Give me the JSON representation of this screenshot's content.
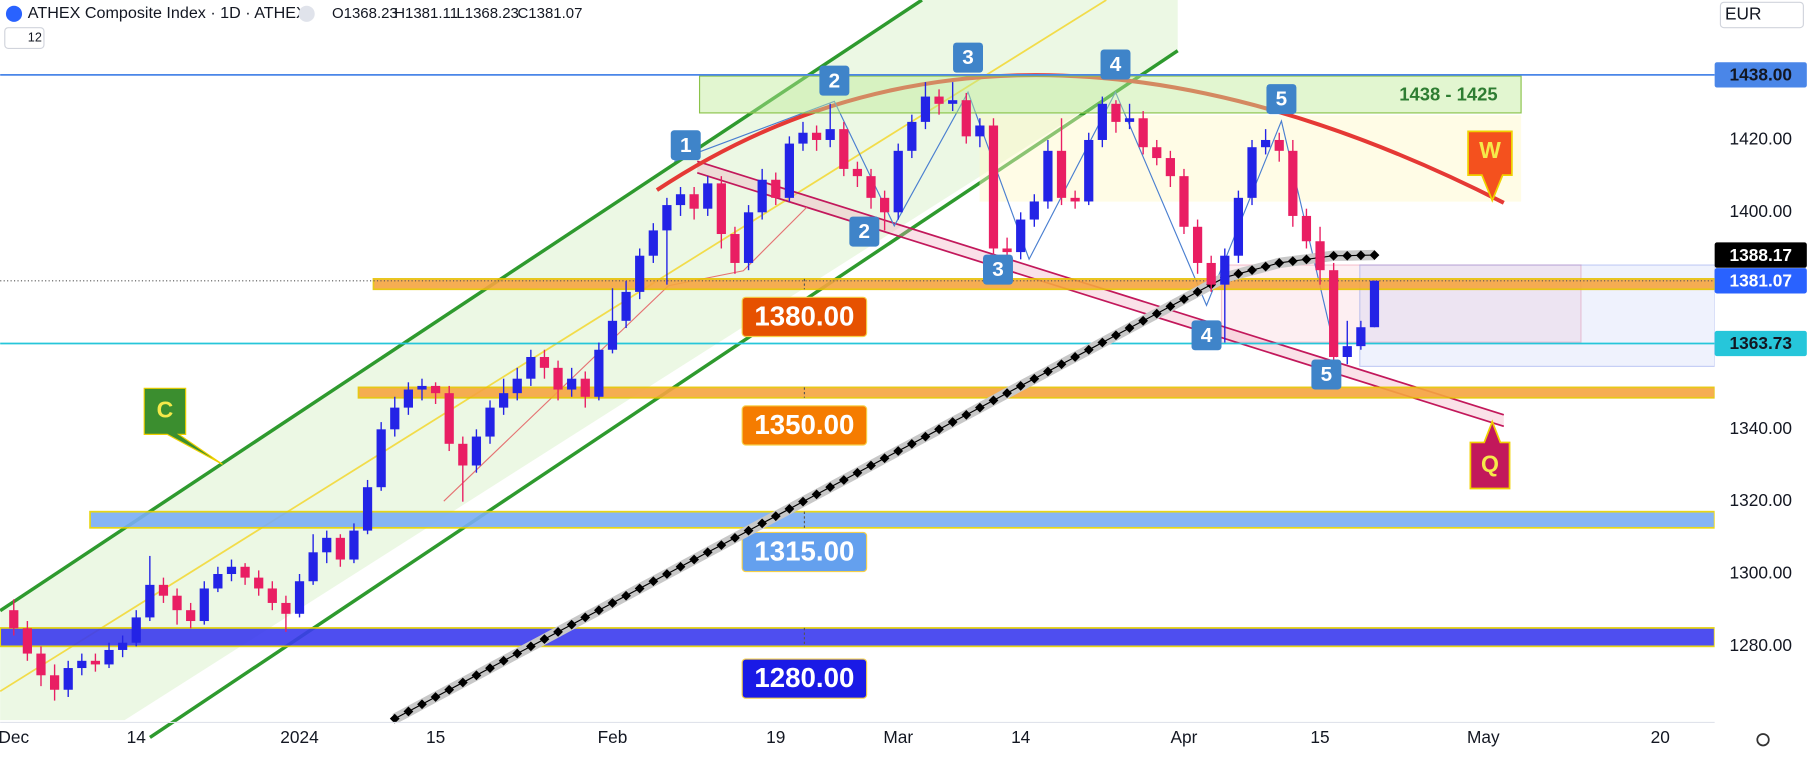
{
  "chart_data": {
    "type": "candlestick",
    "title": "ATHEX Composite Index · 1D · ATHEX",
    "ohlc_header": [
      "O1368.23",
      "H1381.11",
      "L1368.23",
      "C1381.07"
    ],
    "indicator_count": "12",
    "currency": "EUR",
    "up_color": "#2323e6",
    "down_color": "#e91e63",
    "grid": false,
    "xlim": [
      "2023-11-30",
      "2024-05-24"
    ],
    "xticks": [
      {
        "value": "2023-12-01",
        "label": "Dec"
      },
      {
        "value": "2023-12-14",
        "label": "14"
      },
      {
        "value": "2024-01-01",
        "label": "2024"
      },
      {
        "value": "2024-01-15",
        "label": "15"
      },
      {
        "value": "2024-02-01",
        "label": "Feb"
      },
      {
        "value": "2024-02-19",
        "label": "19"
      },
      {
        "value": "2024-03-01",
        "label": "Mar"
      },
      {
        "value": "2024-03-14",
        "label": "14"
      },
      {
        "value": "2024-04-01",
        "label": "Apr"
      },
      {
        "value": "2024-04-15",
        "label": "15"
      },
      {
        "value": "2024-05-01",
        "label": "May"
      },
      {
        "value": "2024-05-20",
        "label": "20"
      }
    ],
    "ylim": [
      1259.6,
      1458.7
    ],
    "yticks": [
      {
        "value": 1280,
        "label": "1280.00"
      },
      {
        "value": 1300,
        "label": "1300.00"
      },
      {
        "value": 1320,
        "label": "1320.00"
      },
      {
        "value": 1340,
        "label": "1340.00"
      },
      {
        "value": 1400,
        "label": "1400.00"
      },
      {
        "value": 1420,
        "label": "1420.00"
      }
    ],
    "x": [
      "2023-12-01",
      "2023-12-04",
      "2023-12-05",
      "2023-12-06",
      "2023-12-07",
      "2023-12-08",
      "2023-12-11",
      "2023-12-12",
      "2023-12-13",
      "2023-12-14",
      "2023-12-15",
      "2023-12-18",
      "2023-12-19",
      "2023-12-20",
      "2023-12-21",
      "2023-12-22",
      "2023-12-25",
      "2023-12-26",
      "2023-12-27",
      "2023-12-28",
      "2023-12-29",
      "2024-01-01",
      "2024-01-02",
      "2024-01-03",
      "2024-01-04",
      "2024-01-05",
      "2024-01-08",
      "2024-01-09",
      "2024-01-10",
      "2024-01-11",
      "2024-01-12",
      "2024-01-15",
      "2024-01-16",
      "2024-01-17",
      "2024-01-18",
      "2024-01-19",
      "2024-01-22",
      "2024-01-23",
      "2024-01-24",
      "2024-01-25",
      "2024-01-26",
      "2024-01-29",
      "2024-01-30",
      "2024-01-31",
      "2024-02-01",
      "2024-02-02",
      "2024-02-05",
      "2024-02-06",
      "2024-02-07",
      "2024-02-08",
      "2024-02-09",
      "2024-02-12",
      "2024-02-13",
      "2024-02-14",
      "2024-02-15",
      "2024-02-16",
      "2024-02-19",
      "2024-02-20",
      "2024-02-21",
      "2024-02-22",
      "2024-02-23",
      "2024-02-26",
      "2024-02-27",
      "2024-02-28",
      "2024-02-29",
      "2024-03-01",
      "2024-03-04",
      "2024-03-05",
      "2024-03-06",
      "2024-03-07",
      "2024-03-08",
      "2024-03-11",
      "2024-03-12",
      "2024-03-13",
      "2024-03-14",
      "2024-03-15",
      "2024-03-18",
      "2024-03-19",
      "2024-03-20",
      "2024-03-21",
      "2024-03-22",
      "2024-03-25",
      "2024-03-26",
      "2024-03-27",
      "2024-03-28",
      "2024-03-29",
      "2024-04-01",
      "2024-04-02",
      "2024-04-03",
      "2024-04-04",
      "2024-04-05",
      "2024-04-08",
      "2024-04-09",
      "2024-04-10",
      "2024-04-11",
      "2024-04-12",
      "2024-04-15",
      "2024-04-16",
      "2024-04-17",
      "2024-04-18",
      "2024-04-19"
    ],
    "ohlc": [
      [
        1290,
        1293,
        1283,
        1285
      ],
      [
        1285,
        1287,
        1276,
        1278
      ],
      [
        1278,
        1280,
        1269,
        1272
      ],
      [
        1272,
        1275,
        1265,
        1268
      ],
      [
        1268,
        1276,
        1266,
        1274
      ],
      [
        1274,
        1278,
        1272,
        1276
      ],
      [
        1276,
        1278,
        1273,
        1275
      ],
      [
        1275,
        1281,
        1274,
        1279
      ],
      [
        1279,
        1283,
        1277,
        1281
      ],
      [
        1281,
        1290,
        1280,
        1288
      ],
      [
        1288,
        1305,
        1287,
        1297
      ],
      [
        1297,
        1299,
        1292,
        1294
      ],
      [
        1294,
        1296,
        1286,
        1290
      ],
      [
        1290,
        1292,
        1285,
        1287
      ],
      [
        1287,
        1298,
        1286,
        1296
      ],
      [
        1296,
        1302,
        1295,
        1300
      ],
      [
        1300,
        1304,
        1298,
        1302
      ],
      [
        1302,
        1303,
        1297,
        1299
      ],
      [
        1299,
        1301,
        1294,
        1296
      ],
      [
        1296,
        1298,
        1290,
        1292
      ],
      [
        1292,
        1294,
        1284,
        1289
      ],
      [
        1289,
        1300,
        1288,
        1298
      ],
      [
        1298,
        1311,
        1297,
        1306
      ],
      [
        1306,
        1312,
        1303,
        1310
      ],
      [
        1310,
        1311,
        1302,
        1304
      ],
      [
        1304,
        1314,
        1303,
        1312
      ],
      [
        1312,
        1326,
        1311,
        1324
      ],
      [
        1324,
        1342,
        1323,
        1340
      ],
      [
        1340,
        1349,
        1338,
        1346
      ],
      [
        1346,
        1353,
        1344,
        1351
      ],
      [
        1351,
        1354,
        1348,
        1352
      ],
      [
        1352,
        1353,
        1347,
        1350
      ],
      [
        1350,
        1352,
        1334,
        1336
      ],
      [
        1336,
        1338,
        1320,
        1330
      ],
      [
        1330,
        1340,
        1328,
        1338
      ],
      [
        1338,
        1348,
        1336,
        1346
      ],
      [
        1346,
        1354,
        1344,
        1350
      ],
      [
        1350,
        1357,
        1348,
        1354
      ],
      [
        1354,
        1362,
        1352,
        1360
      ],
      [
        1360,
        1362,
        1354,
        1357
      ],
      [
        1357,
        1359,
        1348,
        1351
      ],
      [
        1351,
        1357,
        1349,
        1354
      ],
      [
        1354,
        1356,
        1346,
        1349
      ],
      [
        1349,
        1364,
        1348,
        1362
      ],
      [
        1362,
        1379,
        1361,
        1370
      ],
      [
        1370,
        1381,
        1368,
        1378
      ],
      [
        1378,
        1390,
        1376,
        1388
      ],
      [
        1388,
        1397,
        1386,
        1395
      ],
      [
        1395,
        1404,
        1380,
        1402
      ],
      [
        1402,
        1407,
        1399,
        1405
      ],
      [
        1405,
        1407,
        1398,
        1401
      ],
      [
        1401,
        1410,
        1399,
        1408
      ],
      [
        1408,
        1410,
        1390,
        1394
      ],
      [
        1394,
        1396,
        1383,
        1386
      ],
      [
        1386,
        1402,
        1384,
        1400
      ],
      [
        1400,
        1412,
        1398,
        1409
      ],
      [
        1409,
        1411,
        1402,
        1404
      ],
      [
        1404,
        1421,
        1403,
        1419
      ],
      [
        1419,
        1425,
        1417,
        1422
      ],
      [
        1422,
        1424,
        1417,
        1420
      ],
      [
        1420,
        1430,
        1418,
        1423
      ],
      [
        1423,
        1425,
        1410,
        1412
      ],
      [
        1412,
        1414,
        1407,
        1410
      ],
      [
        1410,
        1412,
        1401,
        1404
      ],
      [
        1404,
        1406,
        1395,
        1400
      ],
      [
        1400,
        1419,
        1398,
        1417
      ],
      [
        1417,
        1427,
        1415,
        1425
      ],
      [
        1425,
        1436,
        1423,
        1432
      ],
      [
        1432,
        1434,
        1427,
        1430
      ],
      [
        1430,
        1436,
        1428,
        1431
      ],
      [
        1431,
        1433,
        1419,
        1421
      ],
      [
        1421,
        1426,
        1418,
        1424
      ],
      [
        1424,
        1426,
        1388,
        1390
      ],
      [
        1390,
        1393,
        1386,
        1389
      ],
      [
        1389,
        1400,
        1387,
        1398
      ],
      [
        1398,
        1405,
        1396,
        1403
      ],
      [
        1403,
        1420,
        1401,
        1417
      ],
      [
        1417,
        1426,
        1402,
        1404
      ],
      [
        1404,
        1406,
        1401,
        1403
      ],
      [
        1403,
        1422,
        1402,
        1420
      ],
      [
        1420,
        1432,
        1418,
        1430
      ],
      [
        1430,
        1431,
        1422,
        1425
      ],
      [
        1425,
        1430,
        1423,
        1426
      ],
      [
        1426,
        1428,
        1416,
        1418
      ],
      [
        1418,
        1420,
        1413,
        1415
      ],
      [
        1415,
        1417,
        1407,
        1410
      ],
      [
        1410,
        1412,
        1394,
        1396
      ],
      [
        1396,
        1398,
        1383,
        1386
      ],
      [
        1386,
        1388,
        1378,
        1380
      ],
      [
        1380,
        1390,
        1364,
        1388
      ],
      [
        1388,
        1406,
        1386,
        1404
      ],
      [
        1404,
        1420,
        1402,
        1418
      ],
      [
        1418,
        1423,
        1416,
        1420
      ],
      [
        1420,
        1422,
        1414,
        1417
      ],
      [
        1417,
        1420,
        1396,
        1399
      ],
      [
        1399,
        1401,
        1390,
        1392
      ],
      [
        1392,
        1396,
        1380,
        1384
      ],
      [
        1384,
        1386,
        1358,
        1360
      ],
      [
        1360,
        1370,
        1358,
        1363
      ],
      [
        1363,
        1370,
        1362,
        1368.23
      ],
      [
        1368.23,
        1381.11,
        1368.23,
        1381.07
      ]
    ],
    "ma": {
      "color": "#000000",
      "values": [
        null,
        null,
        null,
        null,
        null,
        null,
        null,
        null,
        null,
        null,
        null,
        null,
        null,
        null,
        null,
        null,
        null,
        null,
        null,
        null,
        null,
        null,
        null,
        null,
        null,
        null,
        null,
        null,
        1260,
        1262,
        1264,
        1266,
        1268,
        1270,
        1272,
        1274,
        1276,
        1278,
        1280,
        1282,
        1284,
        1286,
        1288,
        1290,
        1292,
        1294,
        1296,
        1298,
        1300,
        1302,
        1304,
        1306,
        1308,
        1310,
        1312,
        1314,
        1316,
        1318,
        1320,
        1322,
        1324,
        1326,
        1328,
        1330,
        1332,
        1334,
        1336,
        1338,
        1340,
        1342,
        1344,
        1346,
        1348,
        1350,
        1352,
        1354,
        1356,
        1358,
        1360,
        1362,
        1364,
        1366,
        1368,
        1370,
        1372,
        1374,
        1376,
        1378,
        1380,
        1382,
        1383,
        1384,
        1385,
        1386,
        1386.5,
        1387,
        1387.5,
        1388,
        1388,
        1388.1,
        1388.17
      ]
    },
    "price_tags": [
      {
        "value": 1438,
        "label": "1438.00",
        "color": "#4a86e8"
      },
      {
        "value": 1388.17,
        "label": "1388.17",
        "color": "#000000"
      },
      {
        "value": 1381.07,
        "label": "1381.07",
        "color": "#2962ff"
      },
      {
        "value": 1363.73,
        "label": "1363.73",
        "color": "#26c6da"
      }
    ],
    "levels": [
      {
        "value": 1380,
        "label": "1380.00",
        "color": "#e65100"
      },
      {
        "value": 1350,
        "label": "1350.00",
        "color": "#f57c00"
      },
      {
        "value": 1315,
        "label": "1315.00",
        "color": "#64a0ee"
      },
      {
        "value": 1280,
        "label": "1280.00",
        "color": "#1a1ae6"
      }
    ],
    "zone_label": "1438 - 1425",
    "waves": [
      "1",
      "2",
      "3",
      "4",
      "5",
      "2",
      "3",
      "4",
      "5",
      "C",
      "W",
      "Q"
    ]
  }
}
